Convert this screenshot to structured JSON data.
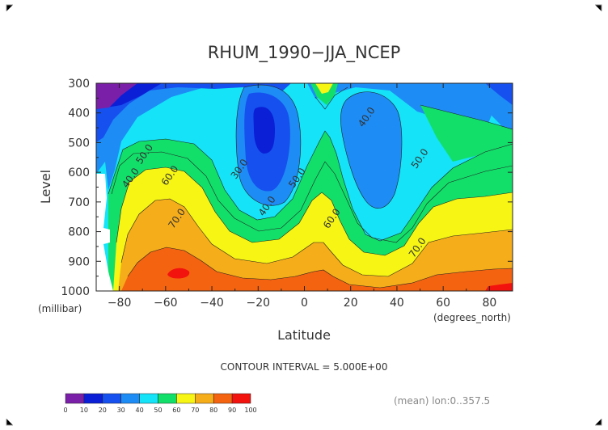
{
  "chart_data": {
    "type": "heatmap",
    "title": "RHUM_1990−JJA_NCEP",
    "xlabel": "Latitude",
    "ylabel": "Level",
    "x_unit": "(degrees_north)",
    "y_unit": "(millibar)",
    "xlim": [
      -90,
      90
    ],
    "ylim": [
      1000,
      300
    ],
    "x_ticks": [
      "−80",
      "−60",
      "−40",
      "−20",
      "0",
      "20",
      "40",
      "60",
      "80"
    ],
    "x_tick_values": [
      -80,
      -60,
      -40,
      -20,
      0,
      20,
      40,
      60,
      80
    ],
    "y_ticks": [
      "300",
      "400",
      "500",
      "600",
      "700",
      "800",
      "900",
      "1000"
    ],
    "y_tick_values": [
      300,
      400,
      500,
      600,
      700,
      800,
      900,
      1000
    ],
    "contour_interval_text": "CONTOUR INTERVAL = 5.000E+00",
    "mean_text": "(mean) lon:0..357.5",
    "contour_labels": [
      {
        "text": "40.0",
        "lat": 28,
        "lev": 420
      },
      {
        "text": "50.0",
        "lat": -68,
        "lev": 545
      },
      {
        "text": "40.0",
        "lat": -74,
        "lev": 625
      },
      {
        "text": "60.0",
        "lat": -57,
        "lev": 617
      },
      {
        "text": "30.0",
        "lat": -27,
        "lev": 595
      },
      {
        "text": "50.0",
        "lat": -2,
        "lev": 625
      },
      {
        "text": "40.0",
        "lat": -15,
        "lev": 720
      },
      {
        "text": "70.0",
        "lat": -54,
        "lev": 762
      },
      {
        "text": "60.0",
        "lat": 13,
        "lev": 762
      },
      {
        "text": "50.0",
        "lat": 51,
        "lev": 560
      },
      {
        "text": "70.0",
        "lat": 50,
        "lev": 860
      }
    ],
    "colorbar": {
      "bins": [
        {
          "min": 0,
          "max": 10,
          "color": "#7a1fa8"
        },
        {
          "min": 10,
          "max": 20,
          "color": "#0a1fd6"
        },
        {
          "min": 20,
          "max": 30,
          "color": "#1650ef"
        },
        {
          "min": 30,
          "max": 40,
          "color": "#1e8cf5"
        },
        {
          "min": 40,
          "max": 50,
          "color": "#15e3f7"
        },
        {
          "min": 50,
          "max": 60,
          "color": "#12df6a"
        },
        {
          "min": 60,
          "max": 70,
          "color": "#f6f514"
        },
        {
          "min": 70,
          "max": 80,
          "color": "#f6ad1a"
        },
        {
          "min": 80,
          "max": 90,
          "color": "#f46310"
        },
        {
          "min": 90,
          "max": 100,
          "color": "#f2120e"
        }
      ],
      "tick_labels": [
        "0",
        "10",
        "20",
        "30",
        "40",
        "50",
        "60",
        "70",
        "80",
        "90",
        "100"
      ]
    }
  }
}
